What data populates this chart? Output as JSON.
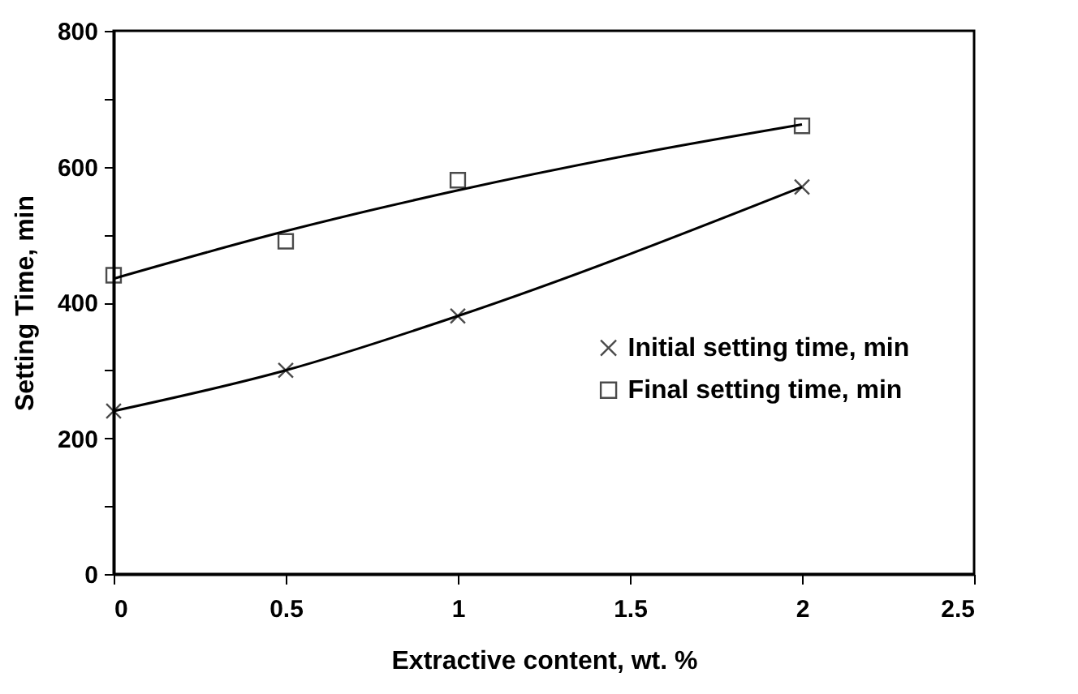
{
  "chart_data": {
    "type": "line",
    "xlabel": "Extractive content, wt. %",
    "ylabel": "Setting Time, min",
    "x": [
      0,
      0.5,
      1,
      2
    ],
    "series": [
      {
        "name": "Initial setting time, min",
        "type": "line",
        "marker": "cross",
        "color": "#000000",
        "values": [
          240,
          300,
          380,
          570
        ]
      },
      {
        "name": "Final setting time, min",
        "type": "scatter",
        "marker": "square",
        "color": "#000000",
        "values": [
          440,
          490,
          580,
          660
        ]
      },
      {
        "type": "line",
        "marker": "none",
        "color": "#000000",
        "x": [
          0,
          0.5,
          1,
          1.5,
          2
        ],
        "values": [
          435,
          505,
          565,
          617,
          662
        ]
      }
    ],
    "xlim": [
      0,
      2.5
    ],
    "xticks": [
      0,
      0.5,
      1,
      1.5,
      2,
      2.5
    ],
    "ylim": [
      0,
      800
    ],
    "yticks": [
      0,
      {
        "value": 100,
        "label": null
      },
      200,
      {
        "value": 300,
        "label": null
      },
      400,
      {
        "value": 500,
        "label": null
      },
      600,
      {
        "value": 700,
        "label": null
      },
      800
    ],
    "grid": false,
    "legend": "right"
  }
}
